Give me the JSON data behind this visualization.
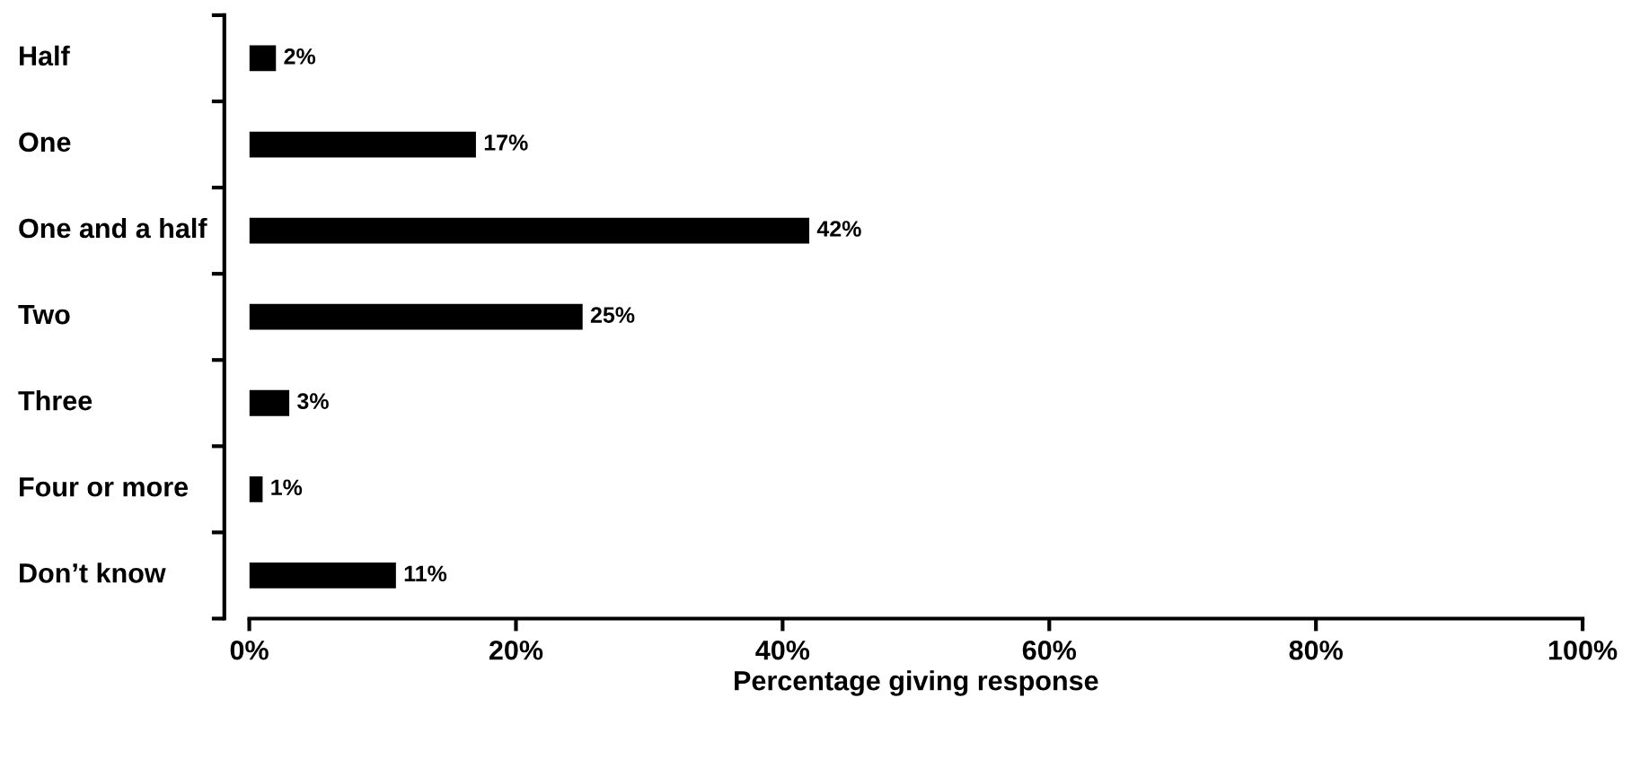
{
  "chart_data": {
    "type": "bar",
    "orientation": "horizontal",
    "xlabel": "Percentage giving response",
    "categories": [
      "Half",
      "One",
      "One and a half",
      "Two",
      "Three",
      "Four or more",
      "Don’t know"
    ],
    "values": [
      2,
      17,
      42,
      25,
      3,
      1,
      11
    ],
    "value_labels": [
      "2%",
      "17%",
      "42%",
      "25%",
      "3%",
      "1%",
      "11%"
    ],
    "color": "#000000",
    "xlim": [
      0,
      100
    ],
    "xticks": [
      {
        "value": 0,
        "label": "0%"
      },
      {
        "value": 20,
        "label": "20%"
      },
      {
        "value": 40,
        "label": "40%"
      },
      {
        "value": 60,
        "label": "60%"
      },
      {
        "value": 80,
        "label": "80%"
      },
      {
        "value": 100,
        "label": "100%"
      }
    ],
    "grid": false,
    "legend": false
  }
}
